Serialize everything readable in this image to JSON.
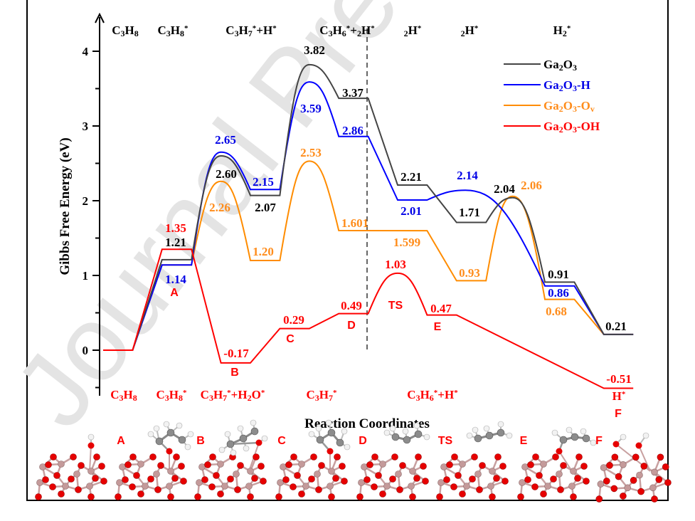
{
  "watermark": "Journal Pre-proof",
  "chart_data": {
    "type": "line",
    "title": "",
    "xlabel": "Reaction Coordinates",
    "ylabel": "Gibbs Free Energy (eV)",
    "ylim": [
      -0.6,
      4.3
    ],
    "xlim": [
      0,
      18
    ],
    "yticks": [
      "0",
      "1",
      "2",
      "3",
      "4"
    ],
    "grid": false,
    "legend_position": "top-right",
    "top_states": [
      "C3H8",
      "C3H8*",
      "C3H7*+H*",
      "C3H6*+2H*",
      "2H*",
      "2H*",
      "H2*"
    ],
    "bottom_states": [
      "C3H8",
      "C3H8*",
      "C3H7*+H2O*",
      "C3H7*",
      "C3H6*+H*",
      "H*"
    ],
    "intermediate_letters": [
      "A",
      "B",
      "C",
      "D",
      "TS",
      "E",
      "F"
    ],
    "series": [
      {
        "key": "black",
        "name": "Ga2O3",
        "color": "#444444",
        "label_color": "#000000",
        "path": [
          [
            0,
            0
          ],
          [
            1,
            0
          ],
          [
            2,
            1.21
          ],
          [
            3,
            1.21
          ],
          {
            "ts": [
              4,
              2.6
            ]
          },
          [
            5,
            2.07
          ],
          [
            6,
            2.07
          ],
          {
            "ts": [
              7,
              3.82
            ]
          },
          [
            8,
            3.37
          ],
          [
            9,
            3.37
          ],
          [
            10,
            2.21
          ],
          [
            11,
            2.21
          ],
          [
            12,
            1.71
          ],
          [
            13,
            1.71
          ],
          {
            "ts": [
              13.9,
              2.04
            ]
          },
          [
            15,
            0.91
          ],
          [
            16,
            0.91
          ],
          [
            17,
            0.21
          ],
          [
            18,
            0.21
          ]
        ],
        "labels": [
          "1.21",
          "2.60",
          "2.07",
          "3.82",
          "3.37",
          "2.21",
          "1.71",
          "2.04",
          "0.91",
          "0.21"
        ]
      },
      {
        "key": "blue",
        "name": "Ga2O3-H",
        "color": "#0000ff",
        "label_color": "#0000e6",
        "path": [
          [
            0,
            0
          ],
          [
            1,
            0
          ],
          [
            2,
            1.14
          ],
          [
            3,
            1.14
          ],
          {
            "ts": [
              4,
              2.65
            ]
          },
          [
            5,
            2.15
          ],
          [
            6,
            2.15
          ],
          {
            "ts": [
              7,
              3.59
            ]
          },
          [
            8,
            2.86
          ],
          [
            9,
            2.86
          ],
          [
            10,
            2.01
          ],
          [
            11,
            2.01
          ],
          {
            "ts": [
              12.3,
              2.14
            ]
          },
          [
            15,
            0.86
          ],
          [
            16,
            0.86
          ],
          [
            17,
            0.21
          ],
          [
            18,
            0.21
          ]
        ],
        "labels": [
          "1.14",
          "2.65",
          "2.15",
          "3.59",
          "2.86",
          "2.01",
          "2.14",
          "0.86"
        ]
      },
      {
        "key": "orange",
        "name": "Ga2O3-Ov",
        "color": "#ff8c00",
        "label_color": "#ff8c1a",
        "path": [
          [
            0,
            0
          ],
          [
            1,
            0
          ],
          [
            2,
            1.14
          ],
          [
            3,
            1.14
          ],
          {
            "ts": [
              4,
              2.26
            ]
          },
          [
            5,
            1.2
          ],
          [
            6,
            1.2
          ],
          {
            "ts": [
              7,
              2.53
            ]
          },
          [
            8,
            1.601
          ],
          [
            11,
            1.599
          ],
          [
            12,
            0.93
          ],
          [
            13,
            0.93
          ],
          {
            "ts": [
              13.9,
              2.06
            ]
          },
          [
            15,
            0.68
          ],
          [
            16,
            0.68
          ],
          [
            17,
            0.21
          ],
          [
            18,
            0.21
          ]
        ],
        "labels": [
          "2.26",
          "1.20",
          "2.53",
          "1.601",
          "1.599",
          "0.93",
          "2.06",
          "0.68"
        ]
      },
      {
        "key": "red",
        "name": "Ga2O3-OH",
        "color": "#ff0000",
        "label_color": "#ff0000",
        "path": [
          [
            0,
            0
          ],
          [
            1,
            0
          ],
          [
            2,
            1.35
          ],
          [
            3,
            1.35
          ],
          [
            4,
            -0.17
          ],
          [
            5,
            -0.17
          ],
          [
            6,
            0.29
          ],
          [
            7,
            0.29
          ],
          [
            8,
            0.49
          ],
          [
            9,
            0.49
          ],
          {
            "ts": [
              10,
              1.03
            ]
          },
          [
            11,
            0.47
          ],
          [
            12,
            0.47
          ],
          [
            17,
            -0.51
          ],
          [
            18,
            -0.51
          ]
        ],
        "labels": [
          "1.35",
          "-0.17",
          "0.29",
          "0.49",
          "1.03",
          "0.47",
          "-0.51"
        ]
      }
    ],
    "divider_at_x": 9
  },
  "structures": {
    "panel_labels": [
      "A",
      "B",
      "C",
      "D",
      "TS",
      "E",
      "F"
    ]
  }
}
